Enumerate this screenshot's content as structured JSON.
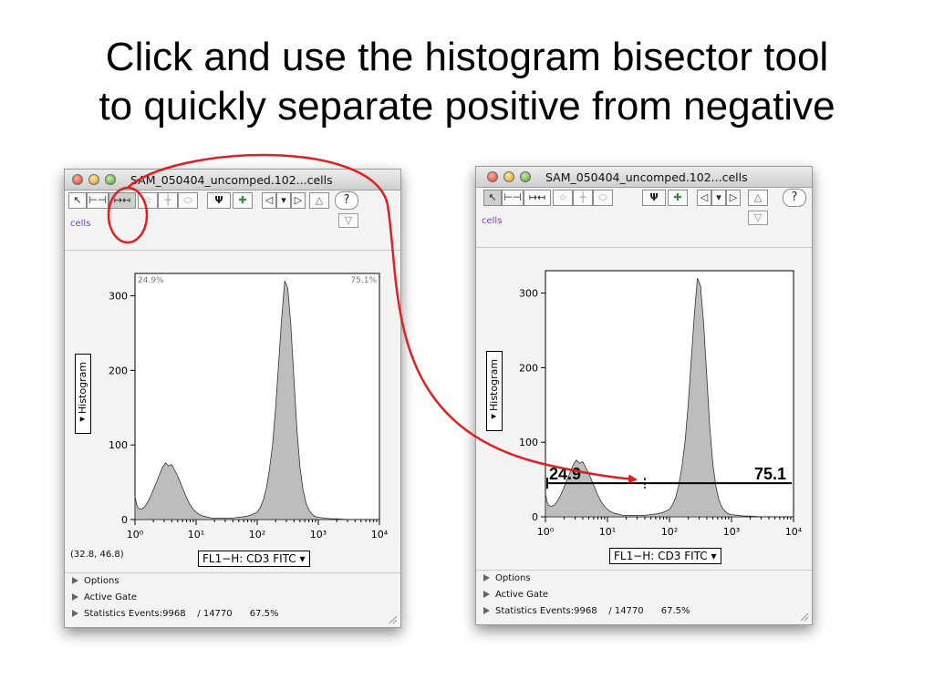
{
  "slide": {
    "title_line1": "Click and use the histogram bisector tool",
    "title_line2": "to quickly separate positive from negative"
  },
  "left_window": {
    "title": "SAM_050404_uncomped.102...cells",
    "population": "cells",
    "corner_left": "24.9%",
    "corner_right": "75.1%",
    "y_axis_label": "◂Histogram",
    "y_ticks": [
      "300",
      "200",
      "100",
      "0"
    ],
    "parameter": "FL1−H: CD3 FITC",
    "parameter_arrow": "▾",
    "cursor_coords": "(32.8, 46.8)",
    "panels": [
      "Options",
      "Active Gate",
      "Statistics Events:9968    / 14770      67.5%"
    ]
  },
  "right_window": {
    "title": "SAM_050404_uncomped.102...cells",
    "population": "cells",
    "y_axis_label": "◂Histogram",
    "y_ticks": [
      "300",
      "200",
      "100",
      "0"
    ],
    "parameter": "FL1−H: CD3 FITC",
    "parameter_arrow": "▾",
    "bisector_left_value": "24.9",
    "bisector_right_value": "75.1",
    "panels": [
      "Options",
      "Active Gate",
      "Statistics Events:9968    / 14770      67.5%"
    ]
  },
  "toolbar": {
    "icons": [
      "arrow-tool-icon",
      "range-gate-icon",
      "bisector-tool-icon",
      "polygon-gate-icon",
      "quadrant-gate-icon",
      "ellipse-gate-icon",
      "psi-tool-icon",
      "add-gate-icon",
      "previous-icon",
      "dropdown-icon",
      "next-icon",
      "up-icon",
      "help-icon"
    ],
    "help_label": "?"
  },
  "chart_data": {
    "type": "area",
    "x_scale": "log",
    "xlim": [
      1,
      10000
    ],
    "ylim": [
      0,
      330
    ],
    "x_tick_labels": [
      "10⁰",
      "10¹",
      "10²",
      "10³",
      "10⁴"
    ],
    "y_tick_labels": [
      "0",
      "100",
      "200",
      "300"
    ],
    "xlabel": "FL1−H: CD3 FITC",
    "ylabel": "Histogram",
    "x": [
      1,
      1.06,
      1.13,
      1.26,
      1.41,
      1.58,
      1.78,
      2.0,
      2.24,
      2.51,
      2.82,
      3.16,
      3.55,
      3.98,
      4.47,
      5.01,
      5.62,
      6.31,
      7.08,
      7.94,
      8.91,
      10,
      11.2,
      12.6,
      14.1,
      15.8,
      17.8,
      20.0,
      25.1,
      31.6,
      39.8,
      50.1,
      63.1,
      79.4,
      100,
      112,
      126,
      141,
      158,
      178,
      200,
      224,
      251,
      282,
      316,
      355,
      398,
      447,
      501,
      562,
      631,
      708,
      794,
      891,
      1000,
      1260,
      1585,
      2000,
      3162,
      5012,
      10000
    ],
    "series": [
      {
        "values": [
          32,
          20,
          15,
          14,
          16,
          22,
          30,
          40,
          50,
          60,
          70,
          76,
          72,
          74,
          66,
          58,
          48,
          38,
          28,
          20,
          14,
          10,
          7,
          5,
          4,
          3,
          2,
          2,
          2,
          2,
          2,
          3,
          4,
          6,
          10,
          16,
          26,
          42,
          66,
          100,
          150,
          210,
          270,
          320,
          310,
          260,
          190,
          120,
          70,
          40,
          22,
          12,
          7,
          4,
          3,
          2,
          1,
          1,
          0,
          0,
          0
        ]
      }
    ]
  }
}
